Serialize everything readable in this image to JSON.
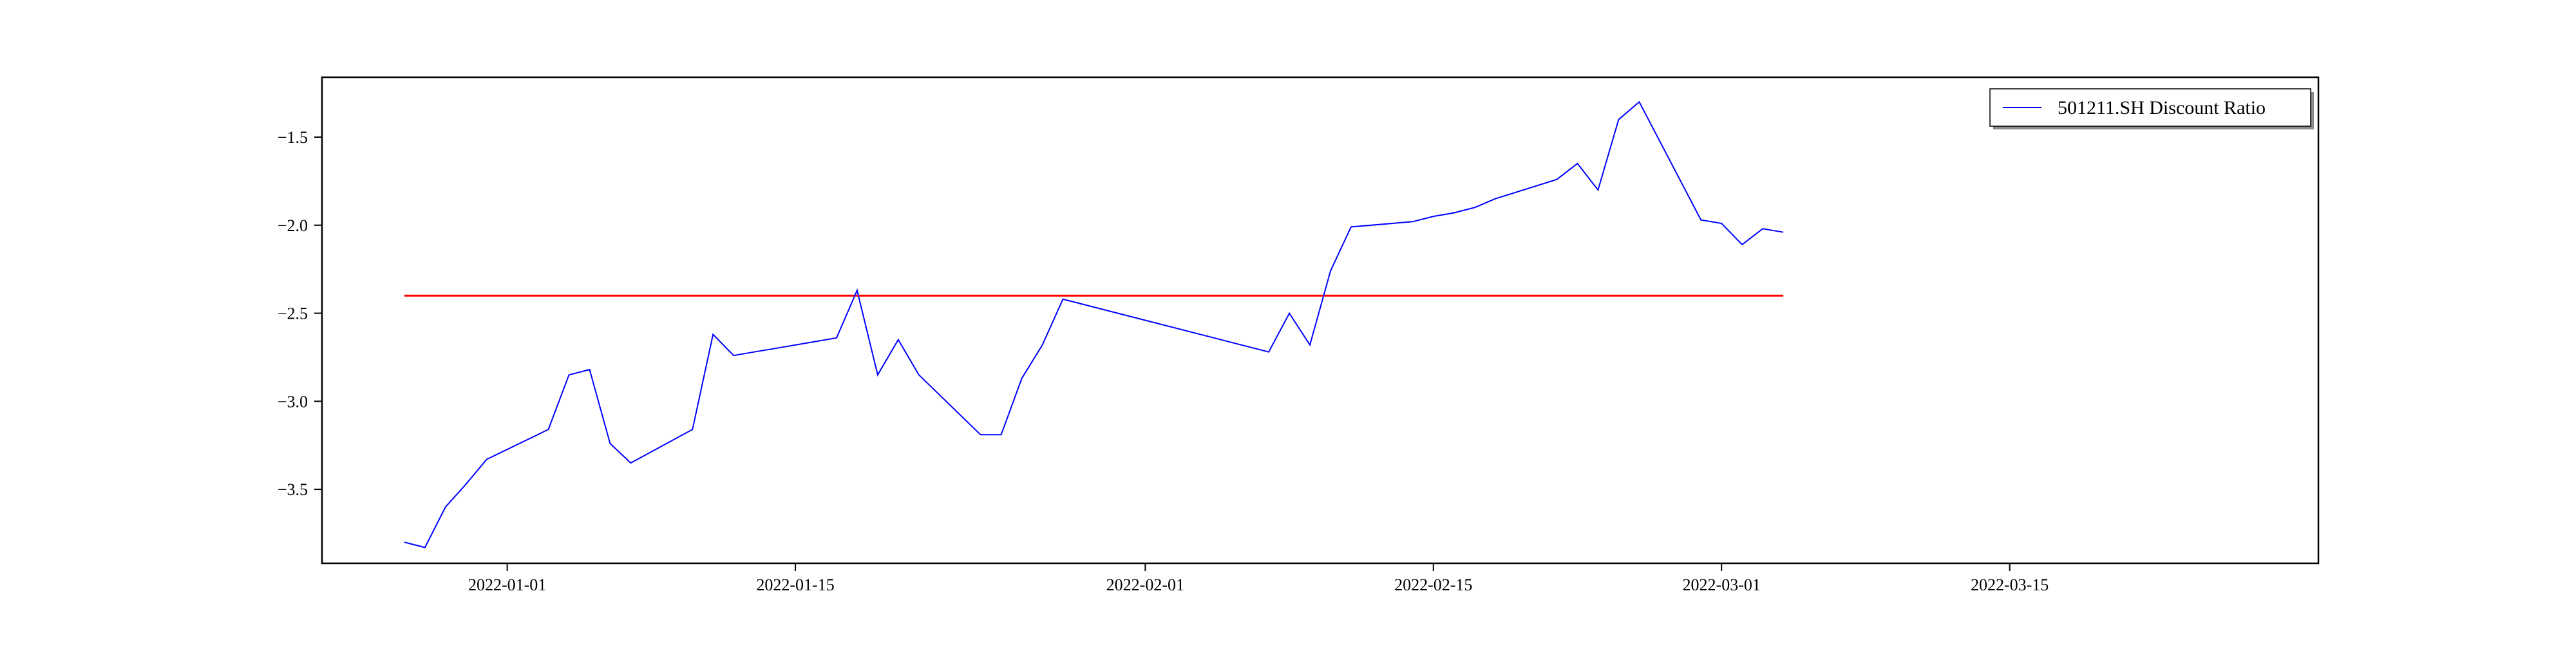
{
  "chart_data": {
    "type": "line",
    "title": "",
    "xlabel": "",
    "ylabel": "",
    "xlim": [
      "2021-12-23",
      "2022-03-30"
    ],
    "ylim": [
      -3.92,
      -1.16
    ],
    "x_ticks": [
      "2022-01-01",
      "2022-01-15",
      "2022-02-01",
      "2022-02-15",
      "2022-03-01",
      "2022-03-15"
    ],
    "y_ticks": [
      -3.5,
      -3.0,
      -2.5,
      -2.0,
      -1.5
    ],
    "y_tick_labels": [
      "−3.5",
      "−3.0",
      "−2.5",
      "−2.0",
      "−1.5"
    ],
    "grid": false,
    "legend_position": "top-right",
    "series": [
      {
        "name": "501211.SH Discount Ratio",
        "color": "#0000ff",
        "points": [
          [
            "2021-12-27",
            -3.8
          ],
          [
            "2021-12-28",
            -3.83
          ],
          [
            "2021-12-29",
            -3.6
          ],
          [
            "2021-12-30",
            -3.47
          ],
          [
            "2021-12-31",
            -3.33
          ],
          [
            "2022-01-03",
            -3.16
          ],
          [
            "2022-01-04",
            -2.85
          ],
          [
            "2022-01-05",
            -2.82
          ],
          [
            "2022-01-06",
            -3.24
          ],
          [
            "2022-01-07",
            -3.35
          ],
          [
            "2022-01-10",
            -3.16
          ],
          [
            "2022-01-11",
            -2.62
          ],
          [
            "2022-01-12",
            -2.74
          ],
          [
            "2022-01-13",
            -2.72
          ],
          [
            "2022-01-14",
            -2.7
          ],
          [
            "2022-01-17",
            -2.64
          ],
          [
            "2022-01-18",
            -2.37
          ],
          [
            "2022-01-19",
            -2.85
          ],
          [
            "2022-01-20",
            -2.65
          ],
          [
            "2022-01-21",
            -2.85
          ],
          [
            "2022-01-24",
            -3.19
          ],
          [
            "2022-01-25",
            -3.19
          ],
          [
            "2022-01-26",
            -2.87
          ],
          [
            "2022-01-27",
            -2.68
          ],
          [
            "2022-01-28",
            -2.42
          ],
          [
            "2022-02-07",
            -2.72
          ],
          [
            "2022-02-08",
            -2.5
          ],
          [
            "2022-02-09",
            -2.68
          ],
          [
            "2022-02-10",
            -2.26
          ],
          [
            "2022-02-11",
            -2.01
          ],
          [
            "2022-02-14",
            -1.98
          ],
          [
            "2022-02-15",
            -1.95
          ],
          [
            "2022-02-16",
            -1.93
          ],
          [
            "2022-02-17",
            -1.9
          ],
          [
            "2022-02-18",
            -1.85
          ],
          [
            "2022-02-21",
            -1.74
          ],
          [
            "2022-02-22",
            -1.65
          ],
          [
            "2022-02-23",
            -1.8
          ],
          [
            "2022-02-24",
            -1.4
          ],
          [
            "2022-02-25",
            -1.3
          ],
          [
            "2022-02-28",
            -1.97
          ],
          [
            "2022-03-01",
            -1.99
          ],
          [
            "2022-03-02",
            -2.11
          ],
          [
            "2022-03-03",
            -2.02
          ],
          [
            "2022-03-04",
            -2.04
          ]
        ]
      }
    ],
    "reference_line": {
      "color": "#ff0000",
      "y": -2.4
    }
  }
}
